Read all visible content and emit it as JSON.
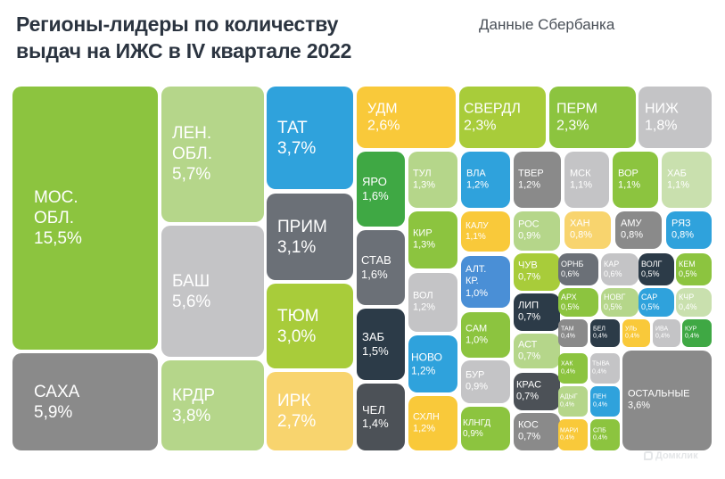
{
  "header": {
    "title_line1": "Регионы-лидеры по количеству",
    "title_line2": "выдач на ИЖС в IV квартале 2022",
    "source": "Данные Сбербанка"
  },
  "logo": {
    "text": "Домклик",
    "icon": "domclick-logo-icon"
  },
  "colors": {
    "green": "#8cc43f",
    "light_green": "#b5d68a",
    "pale_green": "#c9e0ae",
    "lime": "#a8cc3a",
    "dark_green": "#3fa844",
    "blue": "#2fa2dc",
    "mid_blue": "#4a8fd6",
    "yellow": "#f9c93a",
    "light_yellow": "#f8d46e",
    "gray": "#8a8a8a",
    "light_gray": "#c4c4c6",
    "slate": "#6b7077",
    "dark_slate": "#2c3b48",
    "charcoal": "#4c5157"
  },
  "chart_data": {
    "type": "treemap",
    "title": "Регионы-лидеры по количеству выдач на ИЖС в IV квартале 2022",
    "subtitle": "Данные Сбербанка",
    "unit": "%",
    "items": [
      {
        "label": "МОС.\nОБЛ.",
        "value": 15.5,
        "display": "15,5%"
      },
      {
        "label": "САХА",
        "value": 5.9,
        "display": "5,9%"
      },
      {
        "label": "ЛЕН.\nОБЛ.",
        "value": 5.7,
        "display": "5,7%"
      },
      {
        "label": "БАШ",
        "value": 5.6,
        "display": "5,6%"
      },
      {
        "label": "КРДР",
        "value": 3.8,
        "display": "3,8%"
      },
      {
        "label": "ТАТ",
        "value": 3.7,
        "display": "3,7%"
      },
      {
        "label": "ПРИМ",
        "value": 3.1,
        "display": "3,1%"
      },
      {
        "label": "ТЮМ",
        "value": 3.0,
        "display": "3,0%"
      },
      {
        "label": "ИРК",
        "value": 2.7,
        "display": "2,7%"
      },
      {
        "label": "УДМ",
        "value": 2.6,
        "display": "2,6%"
      },
      {
        "label": "СВЕРДЛ",
        "value": 2.3,
        "display": "2,3%"
      },
      {
        "label": "ПЕРМ",
        "value": 2.3,
        "display": "2,3%"
      },
      {
        "label": "НИЖ",
        "value": 1.8,
        "display": "1,8%"
      },
      {
        "label": "ЯРО",
        "value": 1.6,
        "display": "1,6%"
      },
      {
        "label": "СТАВ",
        "value": 1.6,
        "display": "1,6%"
      },
      {
        "label": "ЗАБ",
        "value": 1.5,
        "display": "1,5%"
      },
      {
        "label": "ЧЕЛ",
        "value": 1.4,
        "display": "1,4%"
      },
      {
        "label": "ТУЛ",
        "value": 1.3,
        "display": "1,3%"
      },
      {
        "label": "КИР",
        "value": 1.3,
        "display": "1,3%"
      },
      {
        "label": "ВОЛ",
        "value": 1.2,
        "display": "1,2%"
      },
      {
        "label": "НОВО",
        "value": 1.2,
        "display": "1,2%"
      },
      {
        "label": "СХЛН",
        "value": 1.2,
        "display": "1,2%"
      },
      {
        "label": "ВЛА",
        "value": 1.2,
        "display": "1,2%"
      },
      {
        "label": "ТВЕР",
        "value": 1.2,
        "display": "1,2%"
      },
      {
        "label": "МСК",
        "value": 1.1,
        "display": "1,1%"
      },
      {
        "label": "ВОР",
        "value": 1.1,
        "display": "1,1%"
      },
      {
        "label": "ХАБ",
        "value": 1.1,
        "display": "1,1%"
      },
      {
        "label": "КАЛУ",
        "value": 1.1,
        "display": "1,1%"
      },
      {
        "label": "АЛТ.\nКР.",
        "value": 1.0,
        "display": "1,0%"
      },
      {
        "label": "САМ",
        "value": 1.0,
        "display": "1,0%"
      },
      {
        "label": "БУР",
        "value": 0.9,
        "display": "0,9%"
      },
      {
        "label": "КЛНГД",
        "value": 0.9,
        "display": "0,9%"
      },
      {
        "label": "РОС",
        "value": 0.9,
        "display": "0,9%"
      },
      {
        "label": "ХАН",
        "value": 0.8,
        "display": "0,8%"
      },
      {
        "label": "АМУ",
        "value": 0.8,
        "display": "0,8%"
      },
      {
        "label": "РЯЗ",
        "value": 0.8,
        "display": "0,8%"
      },
      {
        "label": "ЧУВ",
        "value": 0.7,
        "display": "0,7%"
      },
      {
        "label": "ЛИП",
        "value": 0.7,
        "display": "0,7%"
      },
      {
        "label": "АСТ",
        "value": 0.7,
        "display": "0,7%"
      },
      {
        "label": "КРАС",
        "value": 0.7,
        "display": "0,7%"
      },
      {
        "label": "КОС",
        "value": 0.7,
        "display": "0,7%"
      },
      {
        "label": "ОРНБ",
        "value": 0.6,
        "display": "0,6%"
      },
      {
        "label": "КАР",
        "value": 0.6,
        "display": "0,6%"
      },
      {
        "label": "ВОЛГ",
        "value": 0.5,
        "display": "0,5%"
      },
      {
        "label": "КЕМ",
        "value": 0.5,
        "display": "0,5%"
      },
      {
        "label": "АРХ",
        "value": 0.5,
        "display": "0,5%"
      },
      {
        "label": "НОВГ",
        "value": 0.5,
        "display": "0,5%"
      },
      {
        "label": "САР",
        "value": 0.5,
        "display": "0,5%"
      },
      {
        "label": "КЧР",
        "value": 0.4,
        "display": "0,4%"
      },
      {
        "label": "ТАМ",
        "value": 0.4,
        "display": "0,4%"
      },
      {
        "label": "БЕЛ",
        "value": 0.4,
        "display": "0,4%"
      },
      {
        "label": "УЛЬ",
        "value": 0.4,
        "display": "0,4%"
      },
      {
        "label": "ИВА",
        "value": 0.4,
        "display": "0,4%"
      },
      {
        "label": "КУР",
        "value": 0.4,
        "display": "0,4%"
      },
      {
        "label": "ХАК",
        "value": 0.4,
        "display": "0,4%"
      },
      {
        "label": "ТЫВА",
        "value": 0.4,
        "display": "0,4%"
      },
      {
        "label": "АДЫГ",
        "value": 0.4,
        "display": "0,4%"
      },
      {
        "label": "ПЕН",
        "value": 0.4,
        "display": "0,4%"
      },
      {
        "label": "МАРИ",
        "value": 0.4,
        "display": "0,4%"
      },
      {
        "label": "СПБ",
        "value": 0.4,
        "display": "0,4%"
      },
      {
        "label": "ОСТАЛЬНЫЕ",
        "value": 3.6,
        "display": "3,6%"
      }
    ]
  }
}
